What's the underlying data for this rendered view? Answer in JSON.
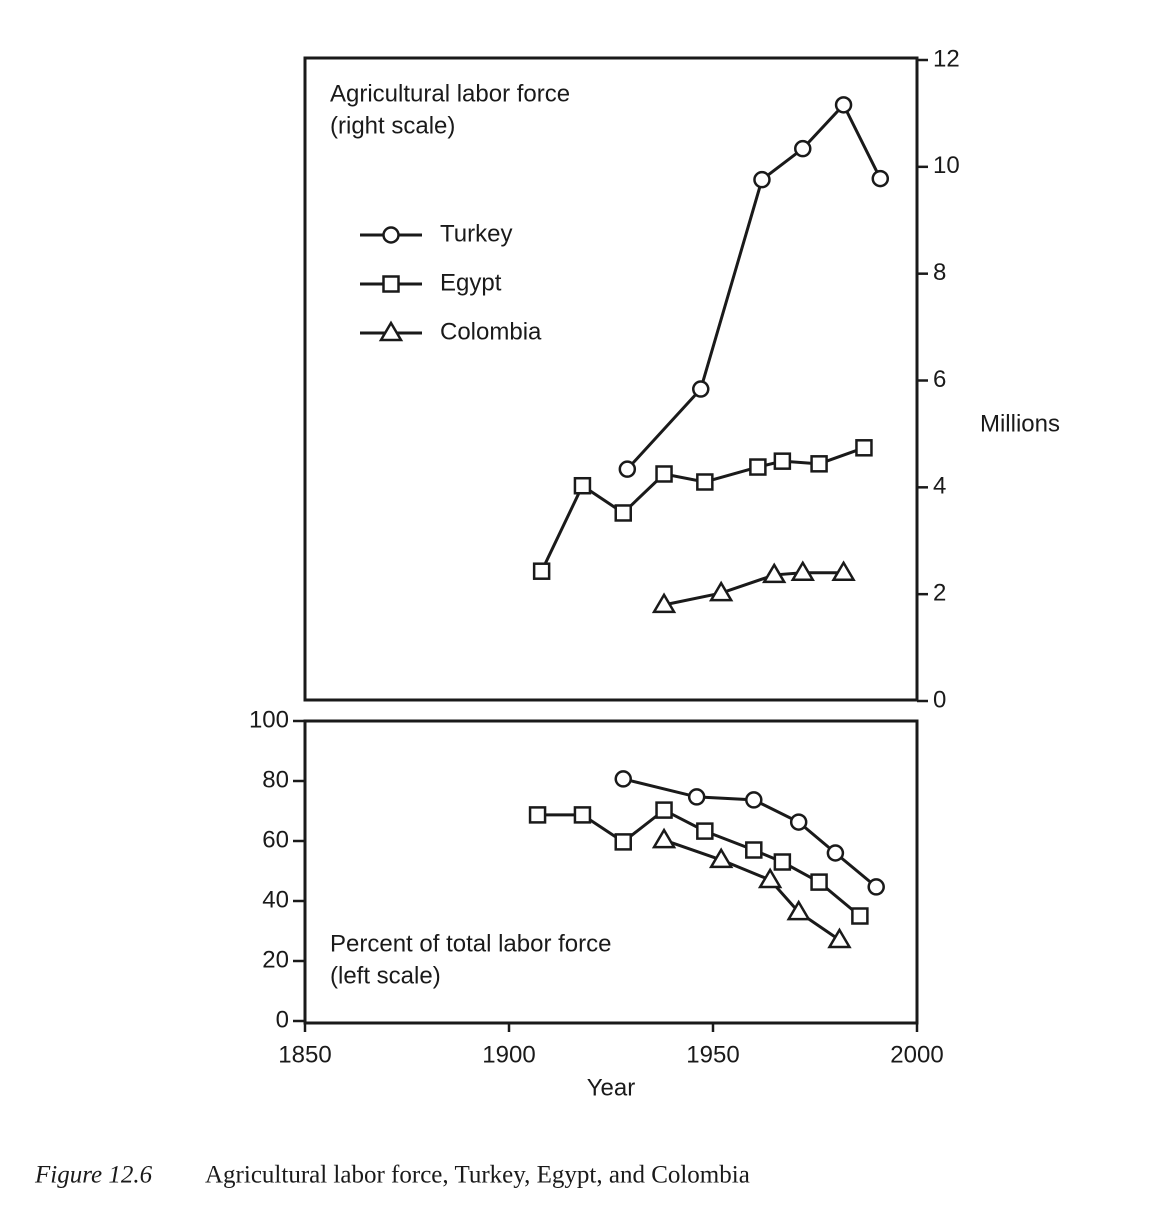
{
  "chart_data": [
    {
      "type": "line",
      "annotation": [
        "Agricultural labor force",
        "(right scale)"
      ],
      "y2label": "Millions",
      "xlim": [
        1850,
        2000
      ],
      "y2lim": [
        0,
        12
      ],
      "y2ticks": [
        0,
        2,
        4,
        6,
        8,
        10,
        12
      ],
      "legend": "upper left",
      "series": [
        {
          "name": "Turkey",
          "color": "#1a1a1a",
          "marker": "circle",
          "axis": "y2",
          "x": [
            1929,
            1947,
            1962,
            1972,
            1982,
            1991
          ],
          "values": [
            4.34,
            5.84,
            9.76,
            10.34,
            11.16,
            9.78
          ]
        },
        {
          "name": "Egypt",
          "color": "#1a1a1a",
          "marker": "square",
          "axis": "y2",
          "x": [
            1908,
            1918,
            1928,
            1938,
            1948,
            1961,
            1967,
            1976,
            1987
          ],
          "values": [
            2.43,
            4.03,
            3.52,
            4.25,
            4.1,
            4.38,
            4.49,
            4.44,
            4.74
          ]
        },
        {
          "name": "Colombia",
          "color": "#1a1a1a",
          "marker": "triangle",
          "axis": "y2",
          "x": [
            1938,
            1952,
            1965,
            1972,
            1982
          ],
          "values": [
            1.8,
            2.02,
            2.36,
            2.4,
            2.4
          ]
        }
      ]
    },
    {
      "type": "line",
      "annotation": [
        "Percent of total labor force",
        "(left scale)"
      ],
      "xlabel": "Year",
      "xlim": [
        1850,
        2000
      ],
      "xticks": [
        1850,
        1900,
        1950,
        2000
      ],
      "ylim": [
        0,
        100
      ],
      "yticks": [
        0,
        20,
        40,
        60,
        80,
        100
      ],
      "series": [
        {
          "color": "#1a1a1a",
          "marker": "circle",
          "x": [
            1928,
            1946,
            1960,
            1971,
            1980,
            1990
          ],
          "values": [
            80.7,
            74.7,
            73.7,
            66.3,
            56,
            44.7
          ]
        },
        {
          "color": "#1a1a1a",
          "marker": "square",
          "x": [
            1907,
            1918,
            1928,
            1938,
            1948,
            1960,
            1967,
            1976,
            1986
          ],
          "values": [
            68.7,
            68.7,
            59.7,
            70.3,
            63.3,
            57,
            53,
            46.3,
            35
          ]
        },
        {
          "color": "#1a1a1a",
          "marker": "triangle",
          "x": [
            1938,
            1952,
            1964,
            1971,
            1981
          ],
          "values": [
            60.3,
            53.7,
            47,
            36.3,
            27
          ]
        }
      ]
    }
  ],
  "caption": {
    "label": "Figure 12.6",
    "text": "Agricultural labor force, Turkey, Egypt, and Colombia"
  }
}
